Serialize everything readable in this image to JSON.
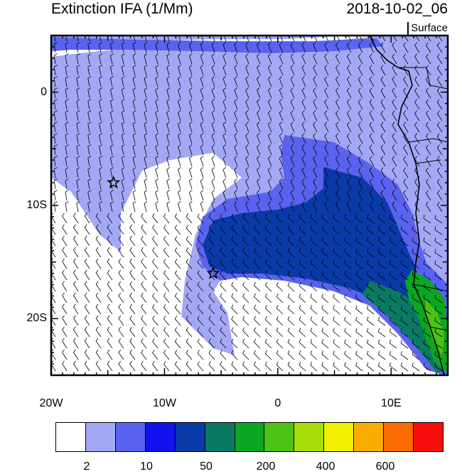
{
  "title_left": "Extinction IFA (1/Mm)",
  "title_right": "2018-10-02_06",
  "level_label": "Surface",
  "map": {
    "lon_range": [
      -20,
      15
    ],
    "lat_range": [
      -25,
      5
    ],
    "y_ticks": [
      {
        "lat": 0,
        "label": "0"
      },
      {
        "lat": -10,
        "label": "10S"
      },
      {
        "lat": -20,
        "label": "20S"
      }
    ],
    "x_ticks": [
      {
        "lon": -20,
        "label": "20W"
      },
      {
        "lon": -10,
        "label": "10W"
      },
      {
        "lon": 0,
        "label": "0"
      },
      {
        "lon": 10,
        "label": "10E"
      }
    ],
    "markers": [
      {
        "name": "star-marker",
        "lon": -14.5,
        "lat": -8
      },
      {
        "name": "star-marker",
        "lon": -5.7,
        "lat": -16
      }
    ]
  },
  "colorbar": {
    "colors": [
      "#ffffff",
      "#a3a8f5",
      "#5a63ef",
      "#1212ef",
      "#0a3aa8",
      "#0a7a64",
      "#0aa822",
      "#4cc214",
      "#a6de0a",
      "#f0f000",
      "#f9ad00",
      "#f96a00",
      "#f80d0d"
    ],
    "labels": [
      {
        "index": 1,
        "text": "2"
      },
      {
        "index": 3,
        "text": "10"
      },
      {
        "index": 5,
        "text": "50"
      },
      {
        "index": 7,
        "text": "200"
      },
      {
        "index": 9,
        "text": "400"
      },
      {
        "index": 11,
        "text": "600"
      }
    ]
  }
}
